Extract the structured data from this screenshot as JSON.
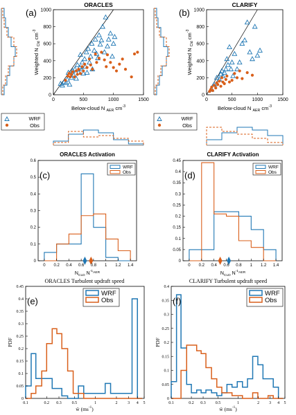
{
  "figure": {
    "colors": {
      "wrf": "#1f77b4",
      "obs": "#d95f1a",
      "axis": "#000000",
      "grid": "#000000"
    },
    "scatter_xlabel": "Below-cloud N",
    "scatter_xlabel_sub": "AER",
    "scatter_xlabel_unit": "cm",
    "scatter_ylabel": "Weighted N",
    "scatter_ylabel_sub": "Cld",
    "scatter_ylabel_unit": "cm",
    "act_xlabel_a": "N",
    "act_xlabel_sub_a": "CLD",
    "act_xlabel_b": "N",
    "act_xlabel_sub_b": "AER",
    "pdf_xlabel": "w̄   (ms",
    "pdf_ylabel": "PDF"
  },
  "chart_data": [
    {
      "type": "scatter",
      "panel": "(a)",
      "title": "ORACLES",
      "xlim": [
        0,
        1500
      ],
      "ylim": [
        0,
        1000
      ],
      "xticks": [
        "0",
        "500",
        "1000",
        "1500"
      ],
      "yticks": [
        "0",
        "200",
        "400",
        "600",
        "800",
        "1000"
      ],
      "legend": {
        "placement": "below",
        "entries": [
          "WRF",
          "Obs"
        ]
      },
      "series": [
        {
          "name": "WRF",
          "marker": "triangle",
          "points": [
            [
              120,
              130
            ],
            [
              150,
              110
            ],
            [
              180,
              150
            ],
            [
              210,
              140
            ],
            [
              230,
              180
            ],
            [
              250,
              260
            ],
            [
              270,
              120
            ],
            [
              300,
              200
            ],
            [
              320,
              280
            ],
            [
              340,
              230
            ],
            [
              360,
              300
            ],
            [
              380,
              190
            ],
            [
              400,
              350
            ],
            [
              420,
              260
            ],
            [
              440,
              320
            ],
            [
              450,
              470
            ],
            [
              470,
              300
            ],
            [
              480,
              380
            ],
            [
              500,
              250
            ],
            [
              520,
              420
            ],
            [
              530,
              330
            ],
            [
              550,
              500
            ],
            [
              560,
              260
            ],
            [
              580,
              540
            ],
            [
              600,
              380
            ],
            [
              620,
              450
            ],
            [
              640,
              600
            ],
            [
              650,
              300
            ],
            [
              680,
              520
            ],
            [
              700,
              650
            ],
            [
              720,
              480
            ],
            [
              740,
              430
            ],
            [
              760,
              700
            ],
            [
              780,
              590
            ],
            [
              800,
              640
            ],
            [
              820,
              800
            ],
            [
              850,
              500
            ],
            [
              870,
              910
            ],
            [
              900,
              570
            ],
            [
              920,
              650
            ],
            [
              950,
              720
            ],
            [
              980,
              450
            ],
            [
              1000,
              600
            ],
            [
              1020,
              680
            ]
          ]
        },
        {
          "name": "Obs",
          "marker": "dot",
          "points": [
            [
              200,
              170
            ],
            [
              240,
              220
            ],
            [
              260,
              250
            ],
            [
              280,
              210
            ],
            [
              300,
              240
            ],
            [
              320,
              270
            ],
            [
              350,
              210
            ],
            [
              380,
              280
            ],
            [
              400,
              240
            ],
            [
              420,
              300
            ],
            [
              450,
              250
            ],
            [
              480,
              330
            ],
            [
              500,
              280
            ],
            [
              520,
              360
            ],
            [
              560,
              320
            ],
            [
              600,
              420
            ],
            [
              620,
              350
            ],
            [
              650,
              300
            ],
            [
              700,
              480
            ],
            [
              720,
              380
            ],
            [
              760,
              430
            ],
            [
              800,
              500
            ],
            [
              850,
              410
            ],
            [
              880,
              330
            ],
            [
              900,
              470
            ],
            [
              950,
              380
            ],
            [
              1000,
              320
            ],
            [
              1050,
              280
            ],
            [
              1100,
              360
            ],
            [
              1150,
              420
            ],
            [
              1200,
              300
            ],
            [
              1300,
              210
            ],
            [
              1350,
              480
            ],
            [
              1400,
              500
            ]
          ]
        }
      ]
    },
    {
      "type": "scatter",
      "panel": "(b)",
      "title": "CLARIFY",
      "xlim": [
        0,
        1500
      ],
      "ylim": [
        0,
        1000
      ],
      "xticks": [
        "0",
        "500",
        "1000",
        "1500"
      ],
      "yticks": [
        "0",
        "200",
        "400",
        "600",
        "800",
        "1000"
      ],
      "legend": {
        "placement": "below",
        "entries": [
          "WRF",
          "Obs"
        ]
      },
      "series": [
        {
          "name": "WRF",
          "marker": "triangle",
          "points": [
            [
              100,
              60
            ],
            [
              150,
              120
            ],
            [
              200,
              200
            ],
            [
              250,
              180
            ],
            [
              280,
              240
            ],
            [
              300,
              280
            ],
            [
              320,
              220
            ],
            [
              350,
              260
            ],
            [
              380,
              300
            ],
            [
              400,
              420
            ],
            [
              420,
              350
            ],
            [
              450,
              560
            ],
            [
              480,
              300
            ],
            [
              500,
              380
            ],
            [
              520,
              220
            ],
            [
              550,
              480
            ],
            [
              600,
              300
            ],
            [
              650,
              380
            ],
            [
              700,
              600
            ],
            [
              750,
              640
            ],
            [
              800,
              850
            ],
            [
              850,
              500
            ],
            [
              900,
              420
            ],
            [
              950,
              800
            ],
            [
              1000,
              460
            ],
            [
              1050,
              520
            ]
          ]
        },
        {
          "name": "Obs",
          "marker": "dot",
          "points": [
            [
              60,
              40
            ],
            [
              80,
              60
            ],
            [
              100,
              90
            ],
            [
              120,
              50
            ],
            [
              150,
              110
            ],
            [
              180,
              80
            ],
            [
              200,
              140
            ],
            [
              220,
              120
            ],
            [
              250,
              160
            ],
            [
              280,
              100
            ],
            [
              300,
              200
            ],
            [
              320,
              150
            ],
            [
              350,
              130
            ],
            [
              380,
              180
            ],
            [
              400,
              220
            ],
            [
              450,
              150
            ],
            [
              500,
              170
            ],
            [
              550,
              250
            ],
            [
              600,
              200
            ],
            [
              650,
              280
            ],
            [
              700,
              190
            ],
            [
              800,
              260
            ],
            [
              900,
              230
            ]
          ]
        }
      ]
    },
    {
      "type": "bar",
      "panel": "(c)",
      "title": "ORACLES Activation",
      "xlim": [
        -0.1,
        1.5
      ],
      "ylim": [
        0,
        0.6
      ],
      "xticks": [
        "0",
        "0.2",
        "0.4",
        "0.6",
        "0.8",
        "1",
        "1.2",
        "1.4"
      ],
      "yticks": [
        "0",
        "0.1",
        "0.2",
        "0.3",
        "0.4",
        "0.5",
        "0.6"
      ],
      "bin_edges": [
        0,
        0.2,
        0.4,
        0.6,
        0.8,
        1.0,
        1.2,
        1.4
      ],
      "legend": {
        "placement": "top-right",
        "entries": [
          "WRF",
          "Obs"
        ]
      },
      "series": [
        {
          "name": "WRF",
          "values": [
            0.05,
            0.1,
            0.1,
            0.52,
            0.2,
            0.02,
            0.0
          ],
          "mean": 0.66
        },
        {
          "name": "Obs",
          "values": [
            0.0,
            0.1,
            0.16,
            0.27,
            0.28,
            0.13,
            0.06
          ],
          "mean": 0.76
        }
      ]
    },
    {
      "type": "bar",
      "panel": "(d)",
      "title": "CLARIFY Activation",
      "xlim": [
        -0.1,
        1.5
      ],
      "ylim": [
        0,
        0.45
      ],
      "xticks": [
        "0",
        "0.2",
        "0.4",
        "0.6",
        "0.8",
        "1",
        "1.2",
        "1.4"
      ],
      "yticks": [
        "0",
        "0.05",
        "0.1",
        "0.15",
        "0.2",
        "0.25",
        "0.3",
        "0.35",
        "0.4",
        "0.45"
      ],
      "bin_edges": [
        0,
        0.2,
        0.4,
        0.6,
        0.8,
        1.0,
        1.2,
        1.4
      ],
      "legend": {
        "placement": "top-right",
        "entries": [
          "WRF",
          "Obs"
        ]
      },
      "series": [
        {
          "name": "WRF",
          "values": [
            0.05,
            0.05,
            0.22,
            0.22,
            0.2,
            0.14,
            0.05
          ],
          "mean": 0.64
        },
        {
          "name": "Obs",
          "values": [
            0.0,
            0.44,
            0.21,
            0.2,
            0.09,
            0.06,
            0.0
          ],
          "mean": 0.5
        }
      ]
    },
    {
      "type": "bar",
      "panel": "(e)",
      "title": "ORACLES Turbulent updraft speed",
      "xscale": "log",
      "xlim": [
        0.1,
        5
      ],
      "ylim": [
        0,
        0.45
      ],
      "xticks": [
        "0.1",
        "0.2",
        "0.3",
        "0.5",
        "1",
        "2",
        "3",
        "4",
        "5"
      ],
      "yticks": [
        "0",
        "0.05",
        "0.1",
        "0.15",
        "0.2",
        "0.25",
        "0.3",
        "0.35",
        "0.4",
        "0.45"
      ],
      "bin_edges": [
        0.1,
        0.12,
        0.14,
        0.17,
        0.2,
        0.24,
        0.28,
        0.33,
        0.4,
        0.48,
        0.57,
        0.68,
        0.81,
        0.97,
        1.16,
        1.38,
        1.65,
        1.97,
        2.35,
        2.8,
        3.35,
        4.0,
        4.7
      ],
      "legend": {
        "placement": "top-center",
        "entries": [
          "WRF",
          "Obs"
        ]
      },
      "series": [
        {
          "name": "WRF",
          "values": [
            0.05,
            0.18,
            0.08,
            0.08,
            0.08,
            0.04,
            0.04,
            0.01,
            0.0,
            0.0,
            0.05,
            0.02,
            0.02,
            0.02,
            0.02,
            0.06,
            0.02,
            0.02,
            0.02,
            0.02,
            0.4,
            0.0
          ]
        },
        {
          "name": "Obs",
          "values": [
            0.0,
            0.02,
            0.05,
            0.11,
            0.22,
            0.28,
            0.26,
            0.2,
            0.11,
            0.02,
            0.02,
            0.0,
            0.0,
            0.0,
            0.0,
            0.0,
            0.0,
            0.0,
            0.0,
            0.0,
            0.0,
            0.0
          ]
        }
      ]
    },
    {
      "type": "bar",
      "panel": "(f)",
      "title": "CLARIFY Turbulent updraft speed",
      "xscale": "log",
      "xlim": [
        0.1,
        5
      ],
      "ylim": [
        0,
        0.4
      ],
      "xticks": [
        "0.1",
        "0.2",
        "0.3",
        "0.5",
        "1",
        "2",
        "3",
        "4",
        "5"
      ],
      "yticks": [
        "0",
        "0.05",
        "0.1",
        "0.15",
        "0.2",
        "0.25",
        "0.3",
        "0.35",
        "0.4"
      ],
      "bin_edges": [
        0.1,
        0.12,
        0.14,
        0.17,
        0.2,
        0.24,
        0.28,
        0.33,
        0.4,
        0.48,
        0.57,
        0.68,
        0.81,
        0.97,
        1.16,
        1.38,
        1.65,
        1.97,
        2.35,
        2.8,
        3.35,
        4.0,
        4.7
      ],
      "legend": {
        "placement": "top-right",
        "entries": [
          "WRF",
          "Obs"
        ]
      },
      "series": [
        {
          "name": "WRF",
          "values": [
            0.06,
            0.37,
            0.18,
            0.05,
            0.02,
            0.03,
            0.02,
            0.03,
            0.02,
            0.01,
            0.02,
            0.05,
            0.04,
            0.06,
            0.04,
            0.07,
            0.15,
            0.12,
            0.07,
            0.07,
            0.04,
            0.0
          ]
        },
        {
          "name": "Obs",
          "values": [
            0.0,
            0.0,
            0.1,
            0.19,
            0.19,
            0.17,
            0.16,
            0.11,
            0.07,
            0.04,
            0.02,
            0.02,
            0.01,
            0.01,
            0.0,
            0.0,
            0.02,
            0.0,
            0.0,
            0.01,
            0.0,
            0.0
          ]
        }
      ]
    }
  ]
}
